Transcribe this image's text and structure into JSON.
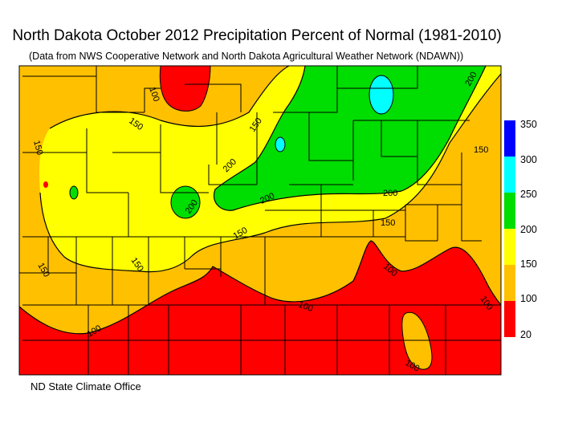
{
  "title": "North Dakota October 2012 Precipitation Percent of Normal (1981-2010)",
  "subtitle": "(Data from NWS Cooperative Network and North Dakota Agricultural Weather Network (NDAWN))",
  "footer": "ND State Climate Office",
  "legend": {
    "classes": [
      {
        "label": "350",
        "color": "#0000ff"
      },
      {
        "label": "300",
        "color": "#00ffff"
      },
      {
        "label": "250",
        "color": "#00dd00"
      },
      {
        "label": "200",
        "color": "#ffff00"
      },
      {
        "label": "150",
        "color": "#ffc000"
      },
      {
        "label": "100",
        "color": "#ff0000"
      },
      {
        "label": "20",
        "color": ""
      }
    ]
  },
  "contour_labels": [
    "100",
    "100",
    "100",
    "100",
    "100",
    "100",
    "150",
    "150",
    "150",
    "150",
    "150",
    "150",
    "150",
    "200",
    "200",
    "200",
    "200",
    "200"
  ]
}
